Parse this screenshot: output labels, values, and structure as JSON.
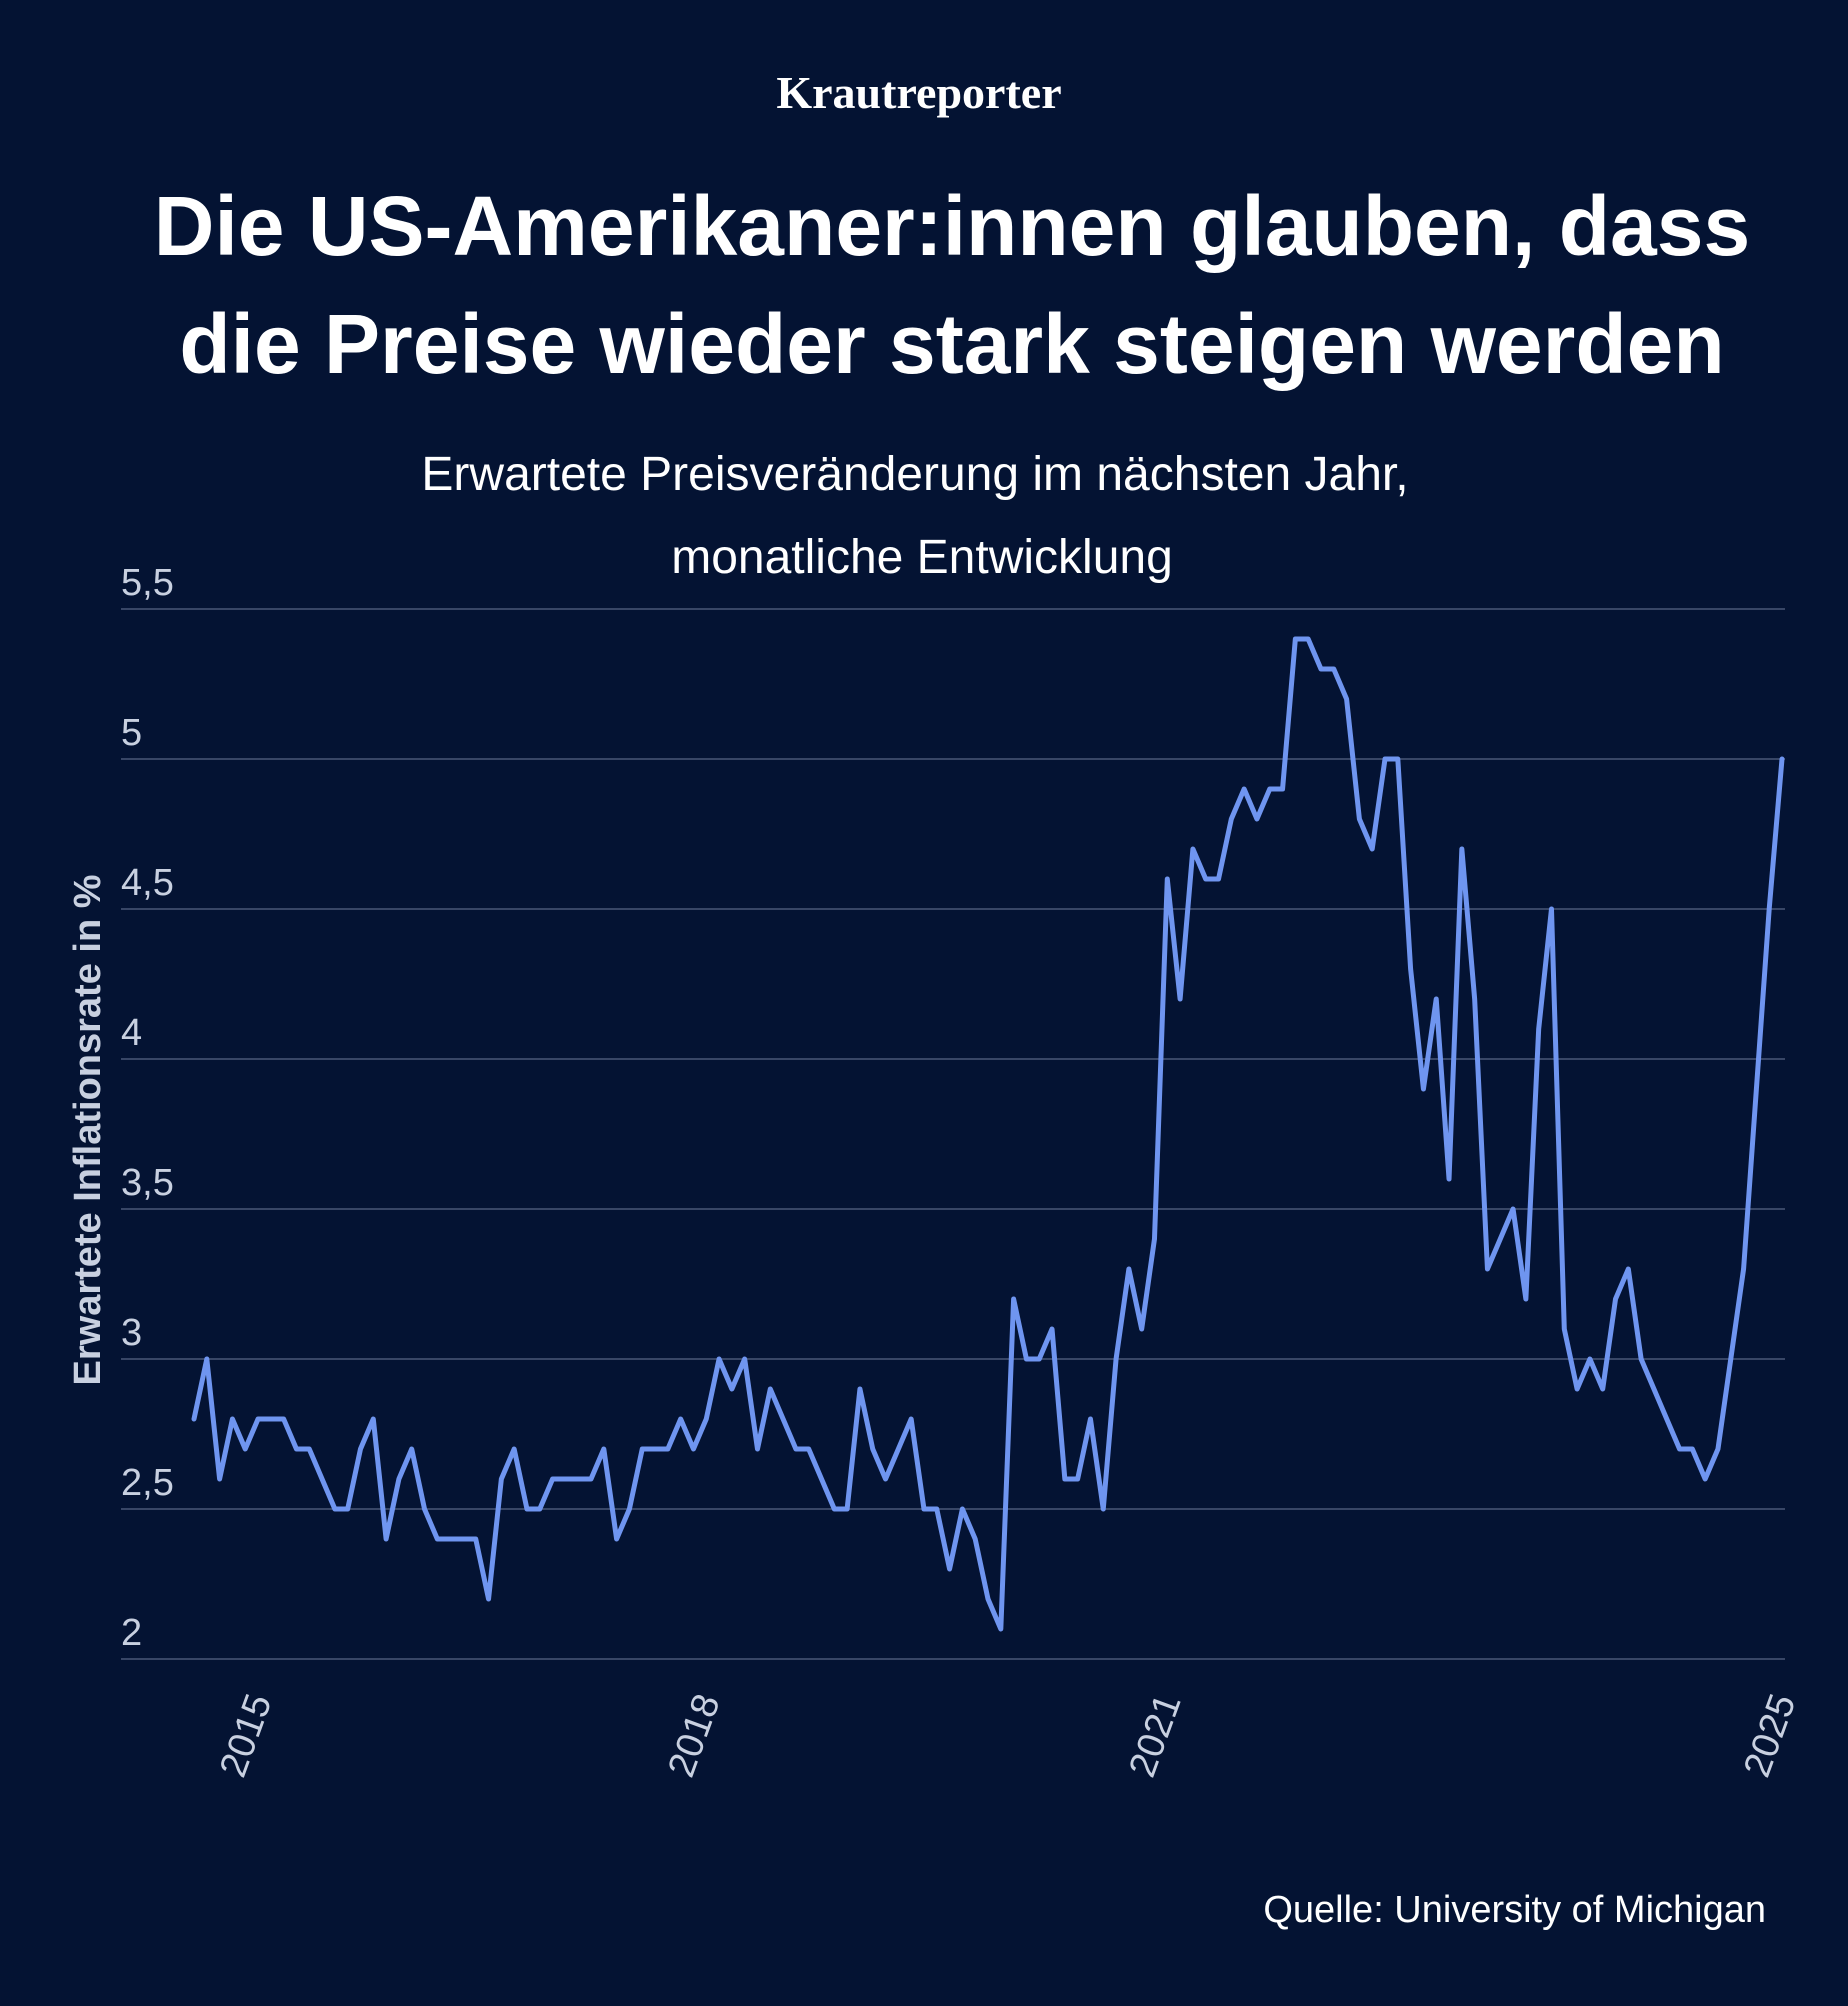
{
  "chart_data": {
    "type": "line",
    "brand": "Krautreporter",
    "title": [
      "Die US-Amerikaner:innen glauben, dass",
      "die Preise wieder stark steigen werden"
    ],
    "subtitle": [
      "Erwartete Preisveränderung im nächsten Jahr,",
      "monatliche Entwicklung"
    ],
    "y_label": "Erwartete Inflationsrate in %",
    "source": "Quelle: University of Michigan",
    "categories": [
      null,
      null,
      null,
      null,
      null,
      "2015",
      null,
      null,
      null,
      null,
      null,
      null,
      null,
      null,
      null,
      null,
      null,
      null,
      null,
      null,
      null,
      null,
      null,
      null,
      null,
      null,
      null,
      null,
      null,
      null,
      null,
      null,
      null,
      null,
      null,
      null,
      null,
      null,
      null,
      null,
      "2018",
      null,
      null,
      null,
      null,
      null,
      null,
      null,
      null,
      null,
      null,
      null,
      null,
      null,
      null,
      null,
      null,
      null,
      null,
      null,
      null,
      null,
      null,
      null,
      null,
      null,
      null,
      null,
      null,
      null,
      null,
      null,
      null,
      null,
      null,
      null,
      "2021",
      null,
      null,
      null,
      null,
      null,
      null,
      null,
      null,
      null,
      null,
      null,
      null,
      null,
      null,
      null,
      null,
      null,
      null,
      null,
      null,
      null,
      null,
      null,
      null,
      null,
      null,
      null,
      null,
      null,
      null,
      null,
      null,
      null,
      null,
      null,
      null,
      null,
      null,
      null,
      null,
      null,
      null,
      null,
      null,
      null,
      null,
      null,
      "2025"
    ],
    "series": [
      {
        "name": "Erwartete Inflationsrate",
        "color": "#6f95f0",
        "values": [
          2.8,
          3.0,
          2.6,
          2.8,
          2.7,
          2.8,
          2.8,
          2.8,
          2.7,
          2.7,
          2.6,
          2.5,
          2.5,
          2.7,
          2.8,
          2.4,
          2.6,
          2.7,
          2.5,
          2.4,
          2.4,
          2.4,
          2.4,
          2.2,
          2.6,
          2.7,
          2.5,
          2.5,
          2.6,
          2.6,
          2.6,
          2.6,
          2.7,
          2.4,
          2.5,
          2.7,
          2.7,
          2.7,
          2.8,
          2.7,
          2.8,
          3.0,
          2.9,
          3.0,
          2.7,
          2.9,
          2.8,
          2.7,
          2.7,
          2.6,
          2.5,
          2.5,
          2.9,
          2.7,
          2.6,
          2.7,
          2.8,
          2.5,
          2.5,
          2.3,
          2.5,
          2.4,
          2.2,
          2.1,
          3.2,
          3.0,
          3.0,
          3.1,
          2.6,
          2.6,
          2.8,
          2.5,
          3.0,
          3.3,
          3.1,
          3.4,
          4.6,
          4.2,
          4.7,
          4.6,
          4.6,
          4.8,
          4.9,
          4.8,
          4.9,
          4.9,
          5.4,
          5.4,
          5.3,
          5.3,
          5.2,
          4.8,
          4.7,
          5.0,
          5.0,
          4.3,
          3.9,
          4.2,
          3.6,
          4.7,
          4.2,
          3.3,
          3.4,
          3.5,
          3.2,
          4.1,
          4.5,
          3.1,
          2.9,
          3.0,
          2.9,
          3.2,
          3.3,
          3.0,
          2.9,
          2.8,
          2.7,
          2.7,
          2.6,
          2.7,
          3.0,
          3.3,
          3.9,
          4.5,
          5.0
        ]
      }
    ],
    "ylim": [
      2,
      5.5
    ],
    "yticks": [
      {
        "value": 2,
        "label": "2"
      },
      {
        "value": 2.5,
        "label": "2,5"
      },
      {
        "value": 3,
        "label": "3"
      },
      {
        "value": 3.5,
        "label": "3,5"
      },
      {
        "value": 4,
        "label": "4"
      },
      {
        "value": 4.5,
        "label": "4,5"
      },
      {
        "value": 5,
        "label": "5"
      },
      {
        "value": 5.5,
        "label": "5,5"
      }
    ],
    "grid": true,
    "grid_color": "#4a5878"
  }
}
